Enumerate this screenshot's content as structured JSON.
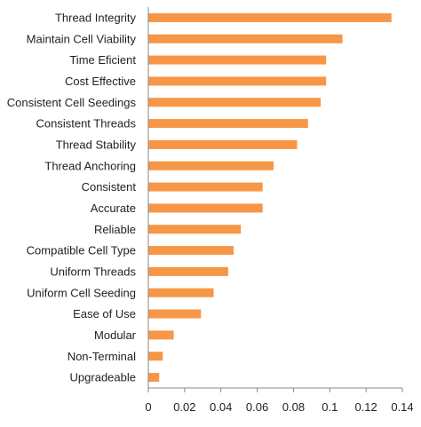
{
  "chart_data": {
    "type": "bar",
    "orientation": "horizontal",
    "categories": [
      "Thread Integrity",
      "Maintain Cell Viability",
      "Time Eficient",
      "Cost Effective",
      "Consistent Cell Seedings",
      "Consistent Threads",
      "Thread Stability",
      "Thread Anchoring",
      "Consistent",
      "Accurate",
      "Reliable",
      "Compatible Cell Type",
      "Uniform Threads",
      "Uniform Cell Seeding",
      "Ease of Use",
      "Modular",
      "Non-Terminal",
      "Upgradeable"
    ],
    "values": [
      0.134,
      0.107,
      0.098,
      0.098,
      0.095,
      0.088,
      0.082,
      0.069,
      0.063,
      0.063,
      0.051,
      0.047,
      0.044,
      0.036,
      0.029,
      0.014,
      0.008,
      0.006
    ],
    "xlim": [
      0,
      0.14
    ],
    "x_ticks": [
      "0",
      "0.02",
      "0.04",
      "0.06",
      "0.08",
      "0.1",
      "0.12",
      "0.14"
    ],
    "title": "",
    "xlabel": "",
    "ylabel": "",
    "grid": false,
    "legend": "none",
    "bar_color": "#f79646",
    "axis_color": "#888888"
  }
}
